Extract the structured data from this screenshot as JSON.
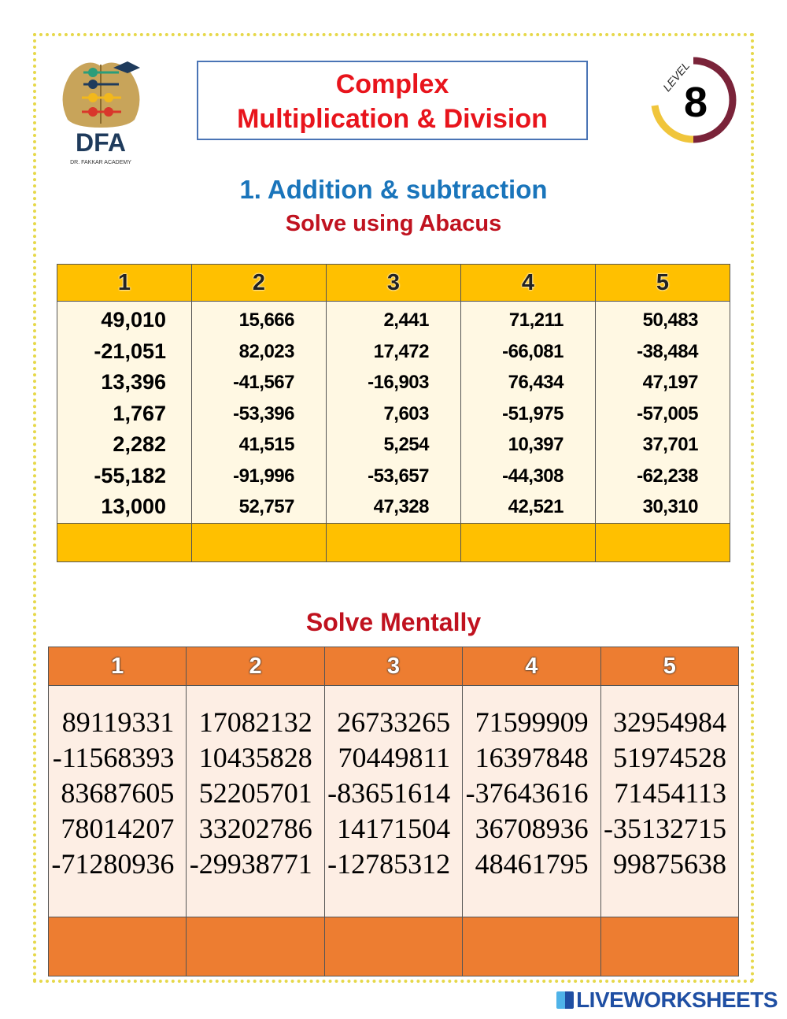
{
  "logo": {
    "letters": "DFA",
    "tagline": "DR. FAKKAR ACADEMY"
  },
  "title": {
    "line1": "Complex",
    "line2": "Multiplication & Division"
  },
  "level": {
    "label": "LEVEL",
    "number": "8"
  },
  "section1": {
    "heading": "1.   Addition & subtraction",
    "subheading": "Solve using Abacus"
  },
  "abacus_table": {
    "headers": [
      "1",
      "2",
      "3",
      "4",
      "5"
    ],
    "columns": [
      [
        "49,010",
        "-21,051",
        "13,396",
        "1,767",
        "2,282",
        "-55,182",
        "13,000"
      ],
      [
        "15,666",
        "82,023",
        "-41,567",
        "-53,396",
        "41,515",
        "-91,996",
        "52,757"
      ],
      [
        "2,441",
        "17,472",
        "-16,903",
        "7,603",
        "5,254",
        "-53,657",
        "47,328"
      ],
      [
        "71,211",
        "-66,081",
        "76,434",
        "-51,975",
        "10,397",
        "-44,308",
        "42,521"
      ],
      [
        "50,483",
        "-38,484",
        "47,197",
        "-57,005",
        "37,701",
        "-62,238",
        "30,310"
      ]
    ],
    "answers": [
      "",
      "",
      "",
      "",
      ""
    ]
  },
  "section2": {
    "heading": "Solve Mentally"
  },
  "mental_table": {
    "headers": [
      "1",
      "2",
      "3",
      "4",
      "5"
    ],
    "columns": [
      [
        "89119331",
        "-11568393",
        "83687605",
        "78014207",
        "-71280936"
      ],
      [
        "17082132",
        "10435828",
        "52205701",
        "33202786",
        "-29938771"
      ],
      [
        "26733265",
        "70449811",
        "-83651614",
        "14171504",
        "-12785312"
      ],
      [
        "71599909",
        "16397848",
        "-37643616",
        "36708936",
        "48461795"
      ],
      [
        "32954984",
        "51974528",
        "71454113",
        "-35132715",
        "99875638"
      ]
    ],
    "answers": [
      "",
      "",
      "",
      "",
      ""
    ]
  },
  "footer": {
    "brand": "LIVEWORKSHEETS"
  },
  "colors": {
    "title_red": "#e8141c",
    "heading_blue": "#1a75bb",
    "sub_red": "#c0121f",
    "yellow": "#ffc000",
    "orange": "#ed7d31"
  }
}
